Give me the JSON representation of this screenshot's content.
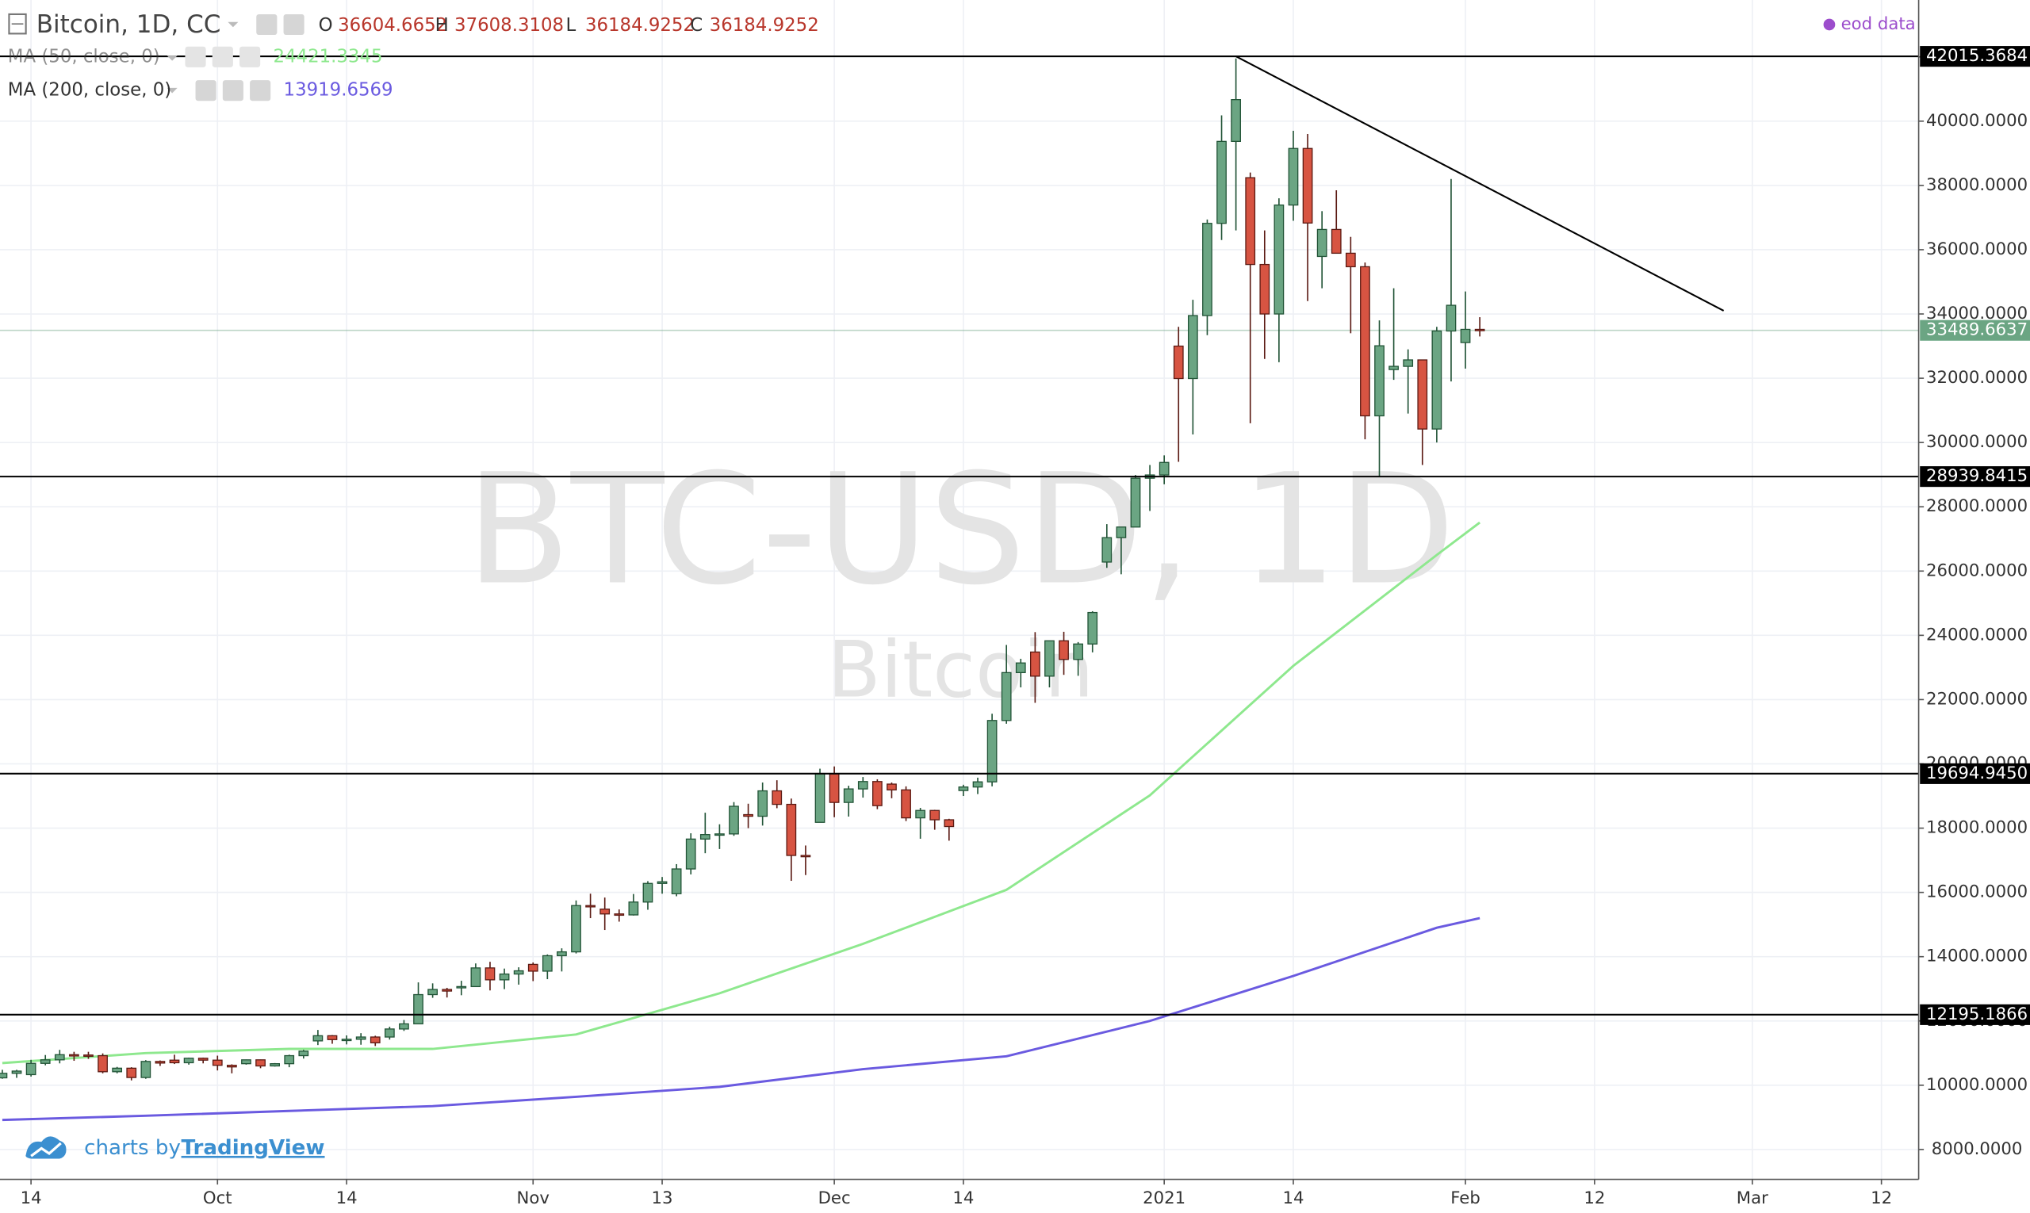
{
  "chart_data": {
    "type": "candlestick",
    "title": "Bitcoin, 1D, CC",
    "source": "eod data",
    "watermark": [
      "BTC-USD, 1D",
      "Bitcoin"
    ],
    "branding": {
      "prefix": "charts by",
      "name": "TradingView"
    },
    "legend": {
      "ohlc_labels": [
        "O",
        "H",
        "L",
        "C"
      ],
      "ohlc_values": [
        36604.6652,
        37608.3108,
        36184.9252,
        36184.9252
      ]
    },
    "up_color": "#6ba583",
    "down_color": "#d75442",
    "xlim": [
      "2020-09-10",
      "2021-03-16"
    ],
    "xticks": [
      {
        "value": "2020-09-14",
        "label": "14"
      },
      {
        "value": "2020-10-01",
        "label": "Oct"
      },
      {
        "value": "2020-10-14",
        "label": "14"
      },
      {
        "value": "2020-11-02",
        "label": "Nov"
      },
      {
        "value": "2020-11-13",
        "label": "13"
      },
      {
        "value": "2020-12-01",
        "label": "Dec"
      },
      {
        "value": "2020-12-14",
        "label": "14"
      },
      {
        "value": "2021-01-01",
        "label": "2021"
      },
      {
        "value": "2021-01-14",
        "label": "14"
      },
      {
        "value": "2021-02-01",
        "label": "Feb"
      },
      {
        "value": "2021-02-12",
        "label": "12"
      },
      {
        "value": "2021-03-01",
        "label": "Mar"
      },
      {
        "value": "2021-03-12",
        "label": "12"
      }
    ],
    "ylim": [
      7070,
      43770
    ],
    "yticks": [
      {
        "value": 8000,
        "label": "8000.0000"
      },
      {
        "value": 10000,
        "label": "10000.0000"
      },
      {
        "value": 12000,
        "label": "12000.0000"
      },
      {
        "value": 14000,
        "label": "14000.0000"
      },
      {
        "value": 16000,
        "label": "16000.0000"
      },
      {
        "value": 18000,
        "label": "18000.0000"
      },
      {
        "value": 20000,
        "label": "20000.0000"
      },
      {
        "value": 22000,
        "label": "22000.0000"
      },
      {
        "value": 24000,
        "label": "24000.0000"
      },
      {
        "value": 26000,
        "label": "26000.0000"
      },
      {
        "value": 28000,
        "label": "28000.0000"
      },
      {
        "value": 30000,
        "label": "30000.0000"
      },
      {
        "value": 32000,
        "label": "32000.0000"
      },
      {
        "value": 34000,
        "label": "34000.0000"
      },
      {
        "value": 36000,
        "label": "36000.0000"
      },
      {
        "value": 38000,
        "label": "38000.0000"
      },
      {
        "value": 40000,
        "label": "40000.0000"
      },
      {
        "value": 42000,
        "label": "42000.0000"
      }
    ],
    "grid": true,
    "levels": [
      42015.3684,
      28939.8415,
      {
        "value": 19694.945,
        "label": "19694.9450"
      },
      12195.1866
    ],
    "trendline": {
      "x": [
        "2021-01-08",
        "2021-02-25"
      ],
      "values": [
        42015.3684,
        34100
      ]
    },
    "x": [
      "2020-09-10",
      "2020-09-11",
      "2020-09-14",
      "2020-09-15",
      "2020-09-16",
      "2020-09-17",
      "2020-09-18",
      "2020-09-21",
      "2020-09-22",
      "2020-09-23",
      "2020-09-24",
      "2020-09-25",
      "2020-09-28",
      "2020-09-29",
      "2020-09-30",
      "2020-10-01",
      "2020-10-02",
      "2020-10-05",
      "2020-10-06",
      "2020-10-07",
      "2020-10-08",
      "2020-10-09",
      "2020-10-12",
      "2020-10-13",
      "2020-10-14",
      "2020-10-15",
      "2020-10-16",
      "2020-10-19",
      "2020-10-20",
      "2020-10-21",
      "2020-10-22",
      "2020-10-23",
      "2020-10-26",
      "2020-10-27",
      "2020-10-28",
      "2020-10-29",
      "2020-10-30",
      "2020-11-02",
      "2020-11-03",
      "2020-11-04",
      "2020-11-05",
      "2020-11-06",
      "2020-11-09",
      "2020-11-10",
      "2020-11-11",
      "2020-11-12",
      "2020-11-13",
      "2020-11-16",
      "2020-11-17",
      "2020-11-18",
      "2020-11-19",
      "2020-11-20",
      "2020-11-23",
      "2020-11-24",
      "2020-11-25",
      "2020-11-26",
      "2020-11-27",
      "2020-11-30",
      "2020-12-01",
      "2020-12-02",
      "2020-12-03",
      "2020-12-04",
      "2020-12-07",
      "2020-12-08",
      "2020-12-09",
      "2020-12-10",
      "2020-12-11",
      "2020-12-14",
      "2020-12-15",
      "2020-12-16",
      "2020-12-17",
      "2020-12-18",
      "2020-12-21",
      "2020-12-22",
      "2020-12-23",
      "2020-12-24",
      "2020-12-25",
      "2020-12-28",
      "2020-12-29",
      "2020-12-30",
      "2020-12-31",
      "2021-01-01",
      "2021-01-04",
      "2021-01-05",
      "2021-01-06",
      "2021-01-07",
      "2021-01-08",
      "2021-01-11",
      "2021-01-12",
      "2021-01-13",
      "2021-01-14",
      "2021-01-15",
      "2021-01-18",
      "2021-01-19",
      "2021-01-20",
      "2021-01-21",
      "2021-01-22",
      "2021-01-25",
      "2021-01-26",
      "2021-01-27",
      "2021-01-28",
      "2021-01-29",
      "2021-02-01",
      "2021-02-02"
    ],
    "ohlc": [
      [
        10230,
        10480,
        10200,
        10370
      ],
      [
        10370,
        10480,
        10230,
        10440
      ],
      [
        10330,
        10790,
        10270,
        10680
      ],
      [
        10680,
        10940,
        10620,
        10790
      ],
      [
        10790,
        11100,
        10680,
        10950
      ],
      [
        10950,
        11040,
        10760,
        10940
      ],
      [
        10940,
        11040,
        10820,
        10930
      ],
      [
        10920,
        10990,
        10370,
        10420
      ],
      [
        10420,
        10570,
        10370,
        10530
      ],
      [
        10530,
        10560,
        10150,
        10240
      ],
      [
        10240,
        10780,
        10200,
        10740
      ],
      [
        10740,
        10770,
        10600,
        10690
      ],
      [
        10780,
        10950,
        10660,
        10700
      ],
      [
        10700,
        10860,
        10640,
        10840
      ],
      [
        10840,
        10860,
        10680,
        10780
      ],
      [
        10780,
        10920,
        10460,
        10620
      ],
      [
        10620,
        10650,
        10370,
        10570
      ],
      [
        10670,
        10800,
        10640,
        10790
      ],
      [
        10790,
        10800,
        10530,
        10600
      ],
      [
        10600,
        10690,
        10580,
        10670
      ],
      [
        10670,
        10950,
        10560,
        10920
      ],
      [
        10920,
        11100,
        10830,
        11060
      ],
      [
        11380,
        11720,
        11250,
        11540
      ],
      [
        11540,
        11560,
        11290,
        11420
      ],
      [
        11420,
        11550,
        11270,
        11430
      ],
      [
        11430,
        11620,
        11260,
        11500
      ],
      [
        11500,
        11540,
        11220,
        11320
      ],
      [
        11500,
        11820,
        11420,
        11750
      ],
      [
        11750,
        12030,
        11690,
        11910
      ],
      [
        11910,
        13200,
        11900,
        12820
      ],
      [
        12820,
        13170,
        12720,
        12980
      ],
      [
        12980,
        13030,
        12730,
        12930
      ],
      [
        13030,
        13250,
        12800,
        13070
      ],
      [
        13070,
        13790,
        13060,
        13650
      ],
      [
        13650,
        13840,
        12950,
        13280
      ],
      [
        13280,
        13630,
        12990,
        13460
      ],
      [
        13460,
        13670,
        13130,
        13560
      ],
      [
        13760,
        13820,
        13240,
        13550
      ],
      [
        13550,
        14070,
        13300,
        14030
      ],
      [
        14030,
        14260,
        13540,
        14150
      ],
      [
        14150,
        15750,
        14100,
        15590
      ],
      [
        15590,
        15960,
        15200,
        15580
      ],
      [
        15480,
        15840,
        14830,
        15330
      ],
      [
        15330,
        15470,
        15090,
        15300
      ],
      [
        15300,
        15950,
        15280,
        15700
      ],
      [
        15700,
        16350,
        15460,
        16280
      ],
      [
        16280,
        16480,
        15960,
        16330
      ],
      [
        15960,
        16880,
        15880,
        16730
      ],
      [
        16730,
        17840,
        16560,
        17660
      ],
      [
        17660,
        18480,
        17220,
        17800
      ],
      [
        17800,
        18120,
        17350,
        17820
      ],
      [
        17820,
        18810,
        17760,
        18680
      ],
      [
        18420,
        18760,
        18000,
        18370
      ],
      [
        18370,
        19420,
        18080,
        19160
      ],
      [
        19160,
        19490,
        18620,
        18740
      ],
      [
        18740,
        18920,
        16360,
        17150
      ],
      [
        17150,
        17460,
        16540,
        17140
      ],
      [
        18180,
        19850,
        18180,
        19700
      ],
      [
        19700,
        19920,
        18340,
        18800
      ],
      [
        18800,
        19320,
        18360,
        19220
      ],
      [
        19220,
        19590,
        18950,
        19450
      ],
      [
        19450,
        19520,
        18590,
        18700
      ],
      [
        19370,
        19420,
        18930,
        19190
      ],
      [
        19190,
        19300,
        18220,
        18320
      ],
      [
        18320,
        18630,
        17670,
        18550
      ],
      [
        18550,
        18570,
        17950,
        18260
      ],
      [
        18260,
        18290,
        17610,
        18050
      ],
      [
        19170,
        19350,
        19000,
        19280
      ],
      [
        19280,
        19570,
        19060,
        19440
      ],
      [
        19440,
        21560,
        19300,
        21350
      ],
      [
        21350,
        23700,
        21250,
        22840
      ],
      [
        22840,
        23270,
        22380,
        23140
      ],
      [
        23480,
        24100,
        21900,
        22730
      ],
      [
        22730,
        23830,
        22380,
        23830
      ],
      [
        23830,
        24110,
        22770,
        23250
      ],
      [
        23250,
        23790,
        22740,
        23730
      ],
      [
        23730,
        24750,
        23470,
        24710
      ],
      [
        26280,
        27460,
        26100,
        27040
      ],
      [
        27040,
        27370,
        25900,
        27370
      ],
      [
        27370,
        28990,
        27370,
        28890
      ],
      [
        28890,
        29300,
        27870,
        28990
      ],
      [
        28990,
        29600,
        28700,
        29380
      ],
      [
        33000,
        33600,
        29400,
        31990
      ],
      [
        31990,
        34440,
        30250,
        33950
      ],
      [
        33950,
        36940,
        33340,
        36820
      ],
      [
        36820,
        40180,
        36300,
        39370
      ],
      [
        39370,
        41950,
        36600,
        40670
      ],
      [
        38240,
        38400,
        30600,
        35540
      ],
      [
        35540,
        36600,
        32600,
        34000
      ],
      [
        34000,
        37600,
        32500,
        37390
      ],
      [
        37390,
        39700,
        36900,
        39150
      ],
      [
        39150,
        39600,
        34400,
        36830
      ],
      [
        35790,
        37200,
        34800,
        36630
      ],
      [
        36630,
        37850,
        35900,
        35890
      ],
      [
        35890,
        36400,
        33400,
        35470
      ],
      [
        35470,
        35600,
        30100,
        30830
      ],
      [
        30830,
        33800,
        28940,
        33010
      ],
      [
        32270,
        34800,
        31950,
        32370
      ],
      [
        32370,
        32900,
        30900,
        32570
      ],
      [
        32570,
        32570,
        29300,
        30420
      ],
      [
        30420,
        33600,
        30000,
        33470
      ],
      [
        33470,
        38200,
        31900,
        34270
      ],
      [
        33110,
        34700,
        32300,
        33520
      ],
      [
        33520,
        33900,
        33300,
        33489.6637
      ]
    ],
    "series": [
      {
        "name": "MA (50, close, 0)",
        "color": "#8ee88e",
        "legend_value": 24421.3345,
        "x": [
          "2020-09-10",
          "2020-09-24",
          "2020-10-08",
          "2020-10-22",
          "2020-11-05",
          "2020-11-19",
          "2020-12-03",
          "2020-12-17",
          "2020-12-31",
          "2021-01-14",
          "2021-01-28",
          "2021-02-02"
        ],
        "values": [
          10690,
          11000,
          11130,
          11130,
          11580,
          12860,
          14400,
          16080,
          19020,
          23050,
          26500,
          27510
        ]
      },
      {
        "name": "MA (200, close, 0)",
        "color": "#6a5ae0",
        "legend_value": 13919.6569,
        "x": [
          "2020-09-10",
          "2020-09-24",
          "2020-10-08",
          "2020-10-22",
          "2020-11-05",
          "2020-11-19",
          "2020-12-03",
          "2020-12-17",
          "2020-12-31",
          "2021-01-14",
          "2021-01-28",
          "2021-02-02"
        ],
        "values": [
          8920,
          9050,
          9200,
          9350,
          9640,
          9950,
          10500,
          10900,
          12000,
          13400,
          14900,
          15200
        ]
      }
    ]
  }
}
